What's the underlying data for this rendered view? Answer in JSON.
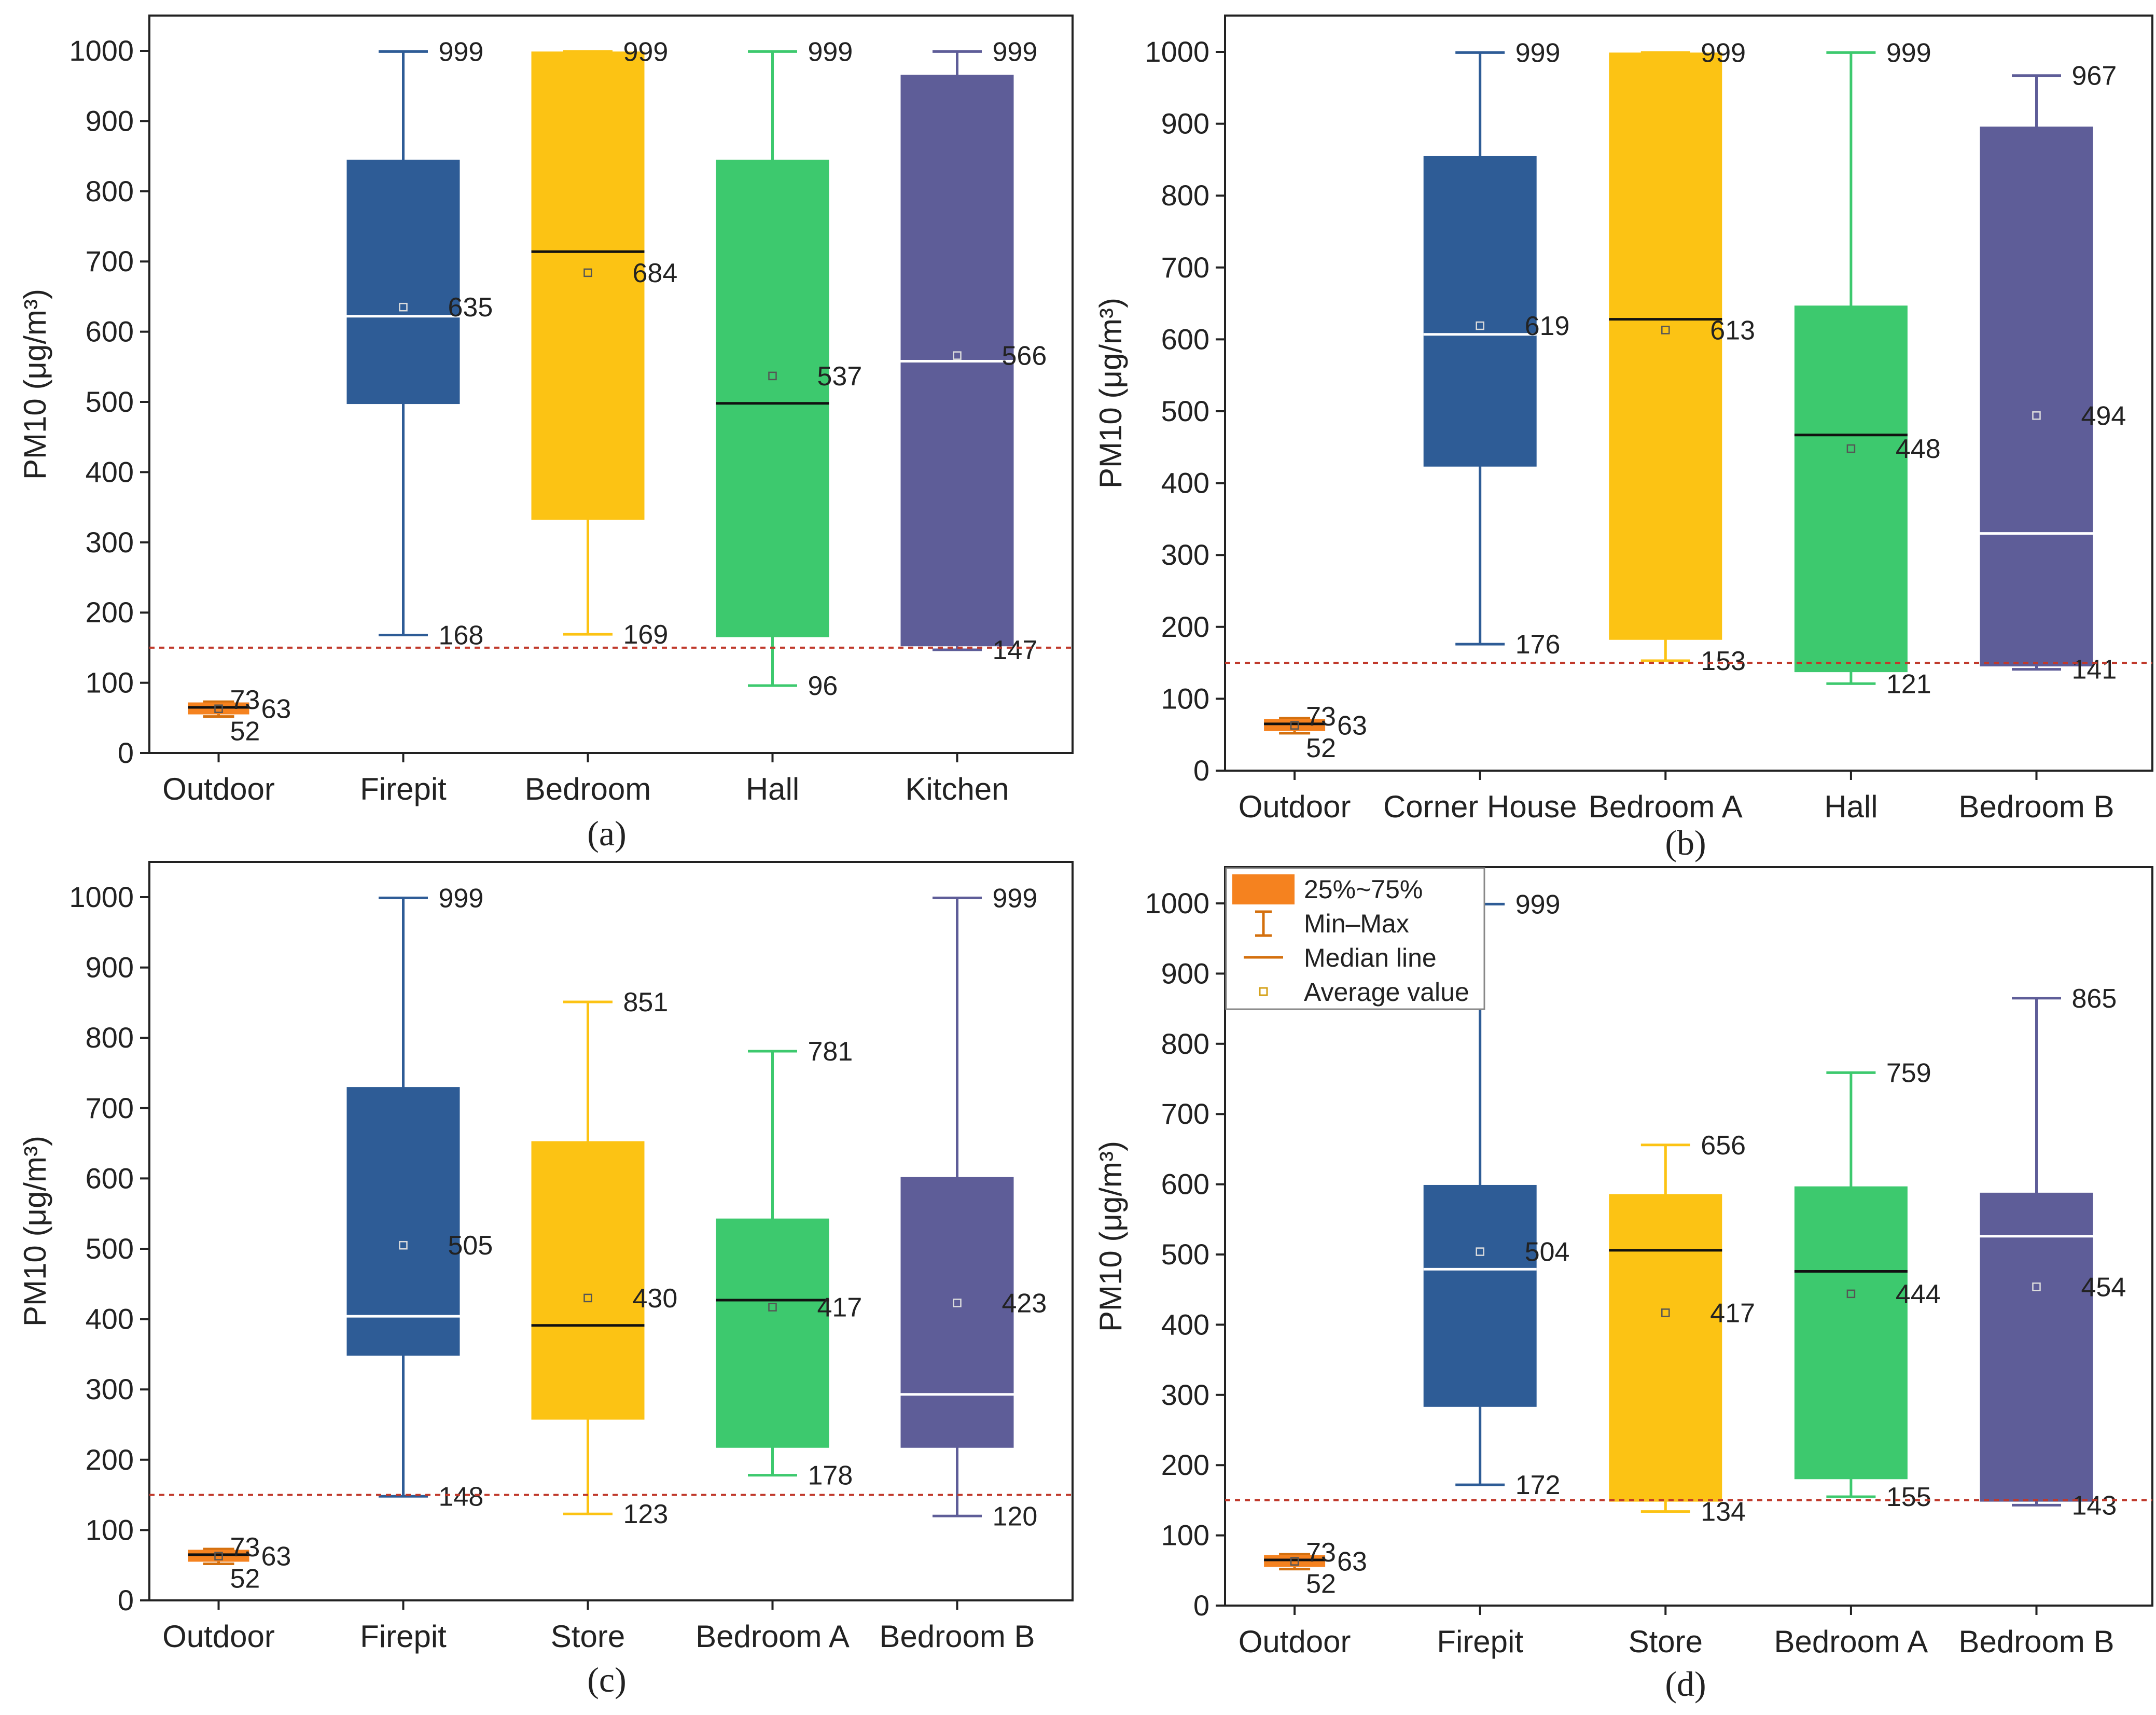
{
  "chart_data": [
    {
      "type": "box",
      "caption": "(a)",
      "ylabel": "PM10 (μg/m³)",
      "ylim": [
        0,
        1000
      ],
      "yticks": [
        0,
        100,
        200,
        300,
        400,
        500,
        600,
        700,
        800,
        900,
        1000
      ],
      "reference_line": 150,
      "categories": [
        "Outdoor",
        "Firepit",
        "Bedroom",
        "Hall",
        "Kitchen"
      ],
      "boxes": [
        {
          "label": "Outdoor",
          "color": "#F5821F",
          "min": 52,
          "q1": 55,
          "median": 65,
          "q3": 72,
          "max": 73,
          "mean": 63,
          "labels": {
            "max": "73",
            "mean": "63",
            "min": "52"
          }
        },
        {
          "label": "Firepit",
          "color": "#2E5C96",
          "min": 168,
          "q1": 497,
          "median": 622,
          "q3": 845,
          "max": 999,
          "mean": 635,
          "labels": {
            "max": "999",
            "mean": "635",
            "min": "168"
          }
        },
        {
          "label": "Bedroom",
          "color": "#FCC314",
          "min": 169,
          "q1": 332,
          "median": 714,
          "q3": 999,
          "max": 999,
          "mean": 684,
          "labels": {
            "max": "999",
            "mean": "684",
            "min": "169"
          }
        },
        {
          "label": "Hall",
          "color": "#3DC96E",
          "min": 96,
          "q1": 165,
          "median": 498,
          "q3": 845,
          "max": 999,
          "mean": 537,
          "labels": {
            "max": "999",
            "mean": "537",
            "min": "96"
          }
        },
        {
          "label": "Kitchen",
          "color": "#5E5D98",
          "min": 147,
          "q1": 152,
          "median": 558,
          "q3": 966,
          "max": 999,
          "mean": 566,
          "labels": {
            "max": "999",
            "mean": "566",
            "min": "147"
          }
        }
      ]
    },
    {
      "type": "box",
      "caption": "(b)",
      "ylabel": "PM10 (μg/m³)",
      "ylim": [
        0,
        1000
      ],
      "yticks": [
        0,
        100,
        200,
        300,
        400,
        500,
        600,
        700,
        800,
        900,
        1000
      ],
      "reference_line": 150,
      "categories": [
        "Outdoor",
        "Corner House",
        "Bedroom A",
        "Hall",
        "Bedroom B"
      ],
      "boxes": [
        {
          "label": "Outdoor",
          "color": "#F5821F",
          "min": 52,
          "q1": 55,
          "median": 65,
          "q3": 72,
          "max": 73,
          "mean": 63,
          "labels": {
            "max": "73",
            "mean": "63",
            "min": "52"
          }
        },
        {
          "label": "Corner House",
          "color": "#2E5C96",
          "min": 176,
          "q1": 423,
          "median": 607,
          "q3": 855,
          "max": 999,
          "mean": 619,
          "labels": {
            "max": "999",
            "mean": "619",
            "min": "176"
          }
        },
        {
          "label": "Bedroom A",
          "color": "#FCC314",
          "min": 153,
          "q1": 182,
          "median": 628,
          "q3": 999,
          "max": 999,
          "mean": 613,
          "labels": {
            "max": "999",
            "mean": "613",
            "min": "153"
          }
        },
        {
          "label": "Hall",
          "color": "#3DC96E",
          "min": 121,
          "q1": 137,
          "median": 467,
          "q3": 647,
          "max": 999,
          "mean": 448,
          "labels": {
            "max": "999",
            "mean": "448",
            "min": "121"
          }
        },
        {
          "label": "Bedroom B",
          "color": "#5E5D98",
          "min": 141,
          "q1": 145,
          "median": 330,
          "q3": 896,
          "max": 967,
          "mean": 494,
          "labels": {
            "max": "967",
            "mean": "494",
            "min": "141"
          }
        }
      ]
    },
    {
      "type": "box",
      "caption": "(c)",
      "ylabel": "PM10 (μg/m³)",
      "ylim": [
        0,
        1000
      ],
      "yticks": [
        0,
        100,
        200,
        300,
        400,
        500,
        600,
        700,
        800,
        900,
        1000
      ],
      "reference_line": 150,
      "categories": [
        "Outdoor",
        "Firepit",
        "Store",
        "Bedroom A",
        "Bedroom B"
      ],
      "boxes": [
        {
          "label": "Outdoor",
          "color": "#F5821F",
          "min": 52,
          "q1": 55,
          "median": 65,
          "q3": 72,
          "max": 73,
          "mean": 63,
          "labels": {
            "max": "73",
            "mean": "63",
            "min": "52"
          }
        },
        {
          "label": "Firepit",
          "color": "#2E5C96",
          "min": 148,
          "q1": 348,
          "median": 404,
          "q3": 730,
          "max": 999,
          "mean": 505,
          "labels": {
            "max": "999",
            "mean": "505",
            "min": "148"
          }
        },
        {
          "label": "Store",
          "color": "#FCC314",
          "min": 123,
          "q1": 257,
          "median": 391,
          "q3": 653,
          "max": 851,
          "mean": 430,
          "labels": {
            "max": "851",
            "mean": "430",
            "min": "123"
          }
        },
        {
          "label": "Bedroom A",
          "color": "#3DC96E",
          "min": 178,
          "q1": 217,
          "median": 427,
          "q3": 543,
          "max": 781,
          "mean": 417,
          "labels": {
            "max": "781",
            "mean": "417",
            "min": "178"
          }
        },
        {
          "label": "Bedroom B",
          "color": "#5E5D98",
          "min": 120,
          "q1": 217,
          "median": 293,
          "q3": 602,
          "max": 999,
          "mean": 423,
          "labels": {
            "max": "999",
            "mean": "423",
            "min": "120"
          }
        }
      ]
    },
    {
      "type": "box",
      "caption": "(d)",
      "ylabel": "PM10 (μg/m³)",
      "ylim": [
        0,
        1000
      ],
      "yticks": [
        0,
        100,
        200,
        300,
        400,
        500,
        600,
        700,
        800,
        900,
        1000
      ],
      "reference_line": 150,
      "categories": [
        "Outdoor",
        "Firepit",
        "Store",
        "Bedroom A",
        "Bedroom B"
      ],
      "boxes": [
        {
          "label": "Outdoor",
          "color": "#F5821F",
          "min": 52,
          "q1": 55,
          "median": 65,
          "q3": 72,
          "max": 73,
          "mean": 63,
          "labels": {
            "max": "73",
            "mean": "63",
            "min": "52"
          }
        },
        {
          "label": "Firepit",
          "color": "#2E5C96",
          "min": 172,
          "q1": 283,
          "median": 479,
          "q3": 599,
          "max": 999,
          "mean": 504,
          "labels": {
            "max": "999",
            "mean": "504",
            "min": "172"
          }
        },
        {
          "label": "Store",
          "color": "#FCC314",
          "min": 134,
          "q1": 148,
          "median": 506,
          "q3": 586,
          "max": 656,
          "mean": 417,
          "labels": {
            "max": "656",
            "mean": "417",
            "min": "134"
          }
        },
        {
          "label": "Bedroom A",
          "color": "#3DC96E",
          "min": 155,
          "q1": 180,
          "median": 476,
          "q3": 597,
          "max": 759,
          "mean": 444,
          "labels": {
            "max": "759",
            "mean": "444",
            "min": "155"
          }
        },
        {
          "label": "Bedroom B",
          "color": "#5E5D98",
          "min": 143,
          "q1": 148,
          "median": 526,
          "q3": 588,
          "max": 865,
          "mean": 454,
          "labels": {
            "max": "865",
            "mean": "454",
            "min": "143"
          }
        }
      ],
      "legend": {
        "location": "top-left",
        "items": [
          {
            "kind": "box",
            "label": "25%~75%"
          },
          {
            "kind": "whisker",
            "label": "Min–Max"
          },
          {
            "kind": "median",
            "label": "Median line"
          },
          {
            "kind": "mean",
            "label": "Average value"
          }
        ]
      }
    }
  ],
  "colors": {
    "outdoor": "#F5821F",
    "blue": "#2E5C96",
    "yellow": "#FCC314",
    "green": "#3DC96E",
    "purple": "#5E5D98",
    "reference_line": "#C0392B"
  }
}
